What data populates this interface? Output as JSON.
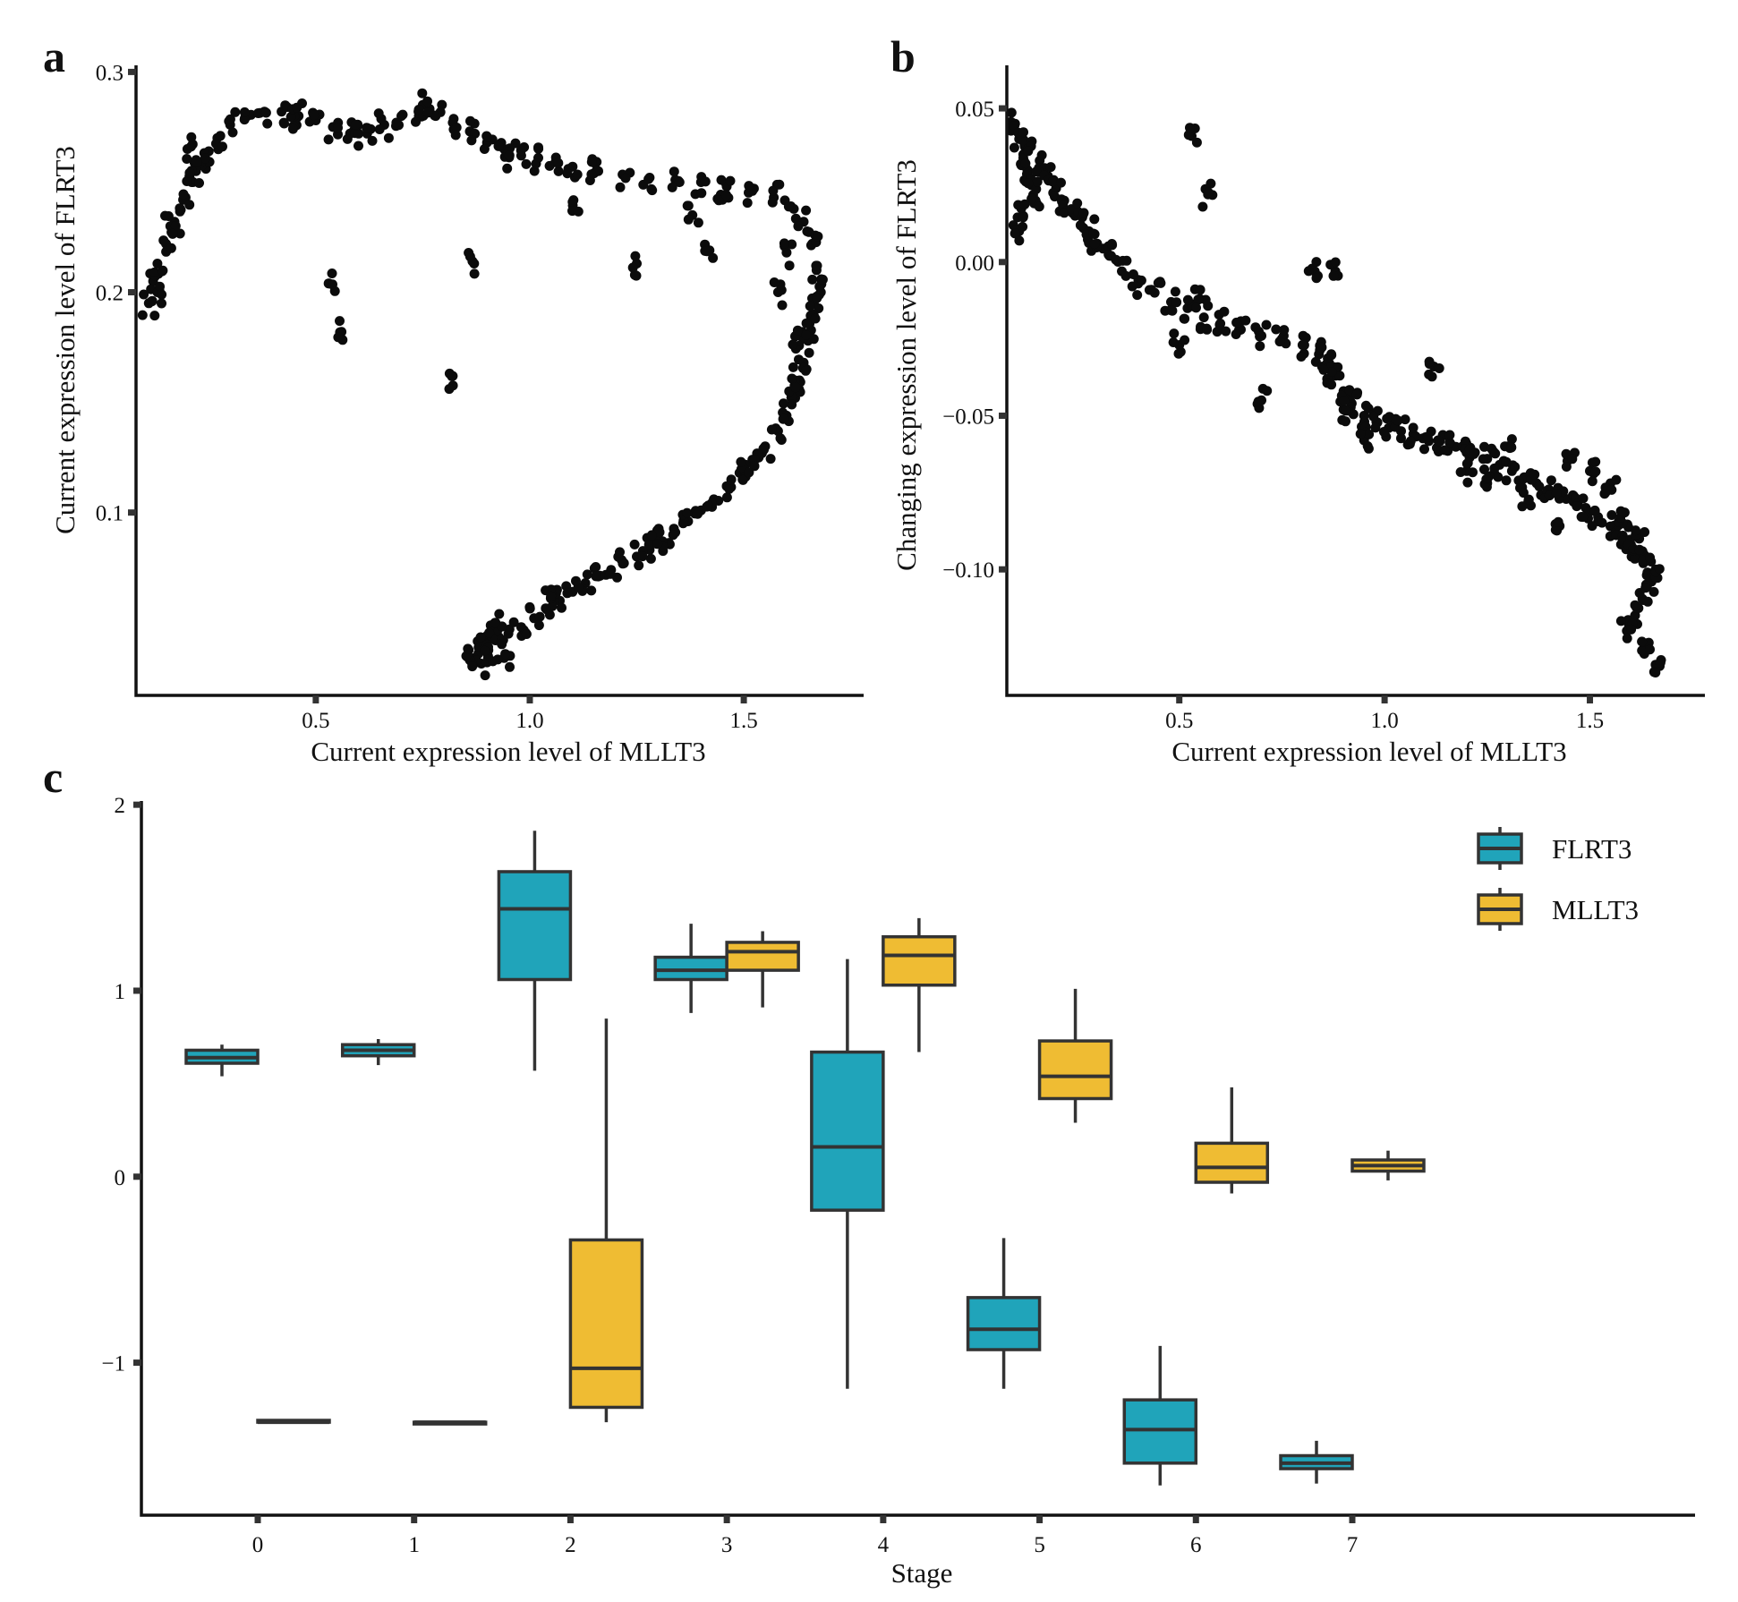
{
  "colors": {
    "FLRT3": "#20A4BA",
    "MLLT3": "#EFBC33",
    "points": "#0b0b0b",
    "axis": "#111111"
  },
  "chart_data": [
    {
      "panel": "a",
      "type": "scatter",
      "title": "",
      "xlabel": "Current expression level of MLLT3",
      "ylabel": "Current expression level of FLRT3",
      "xlim": [
        0.08,
        1.78
      ],
      "ylim": [
        0.017,
        0.303
      ],
      "xticks": [
        0.5,
        1.0,
        1.5
      ],
      "xtick_labels": [
        "0.5",
        "1.0",
        "1.5"
      ],
      "yticks": [
        0.1,
        0.2,
        0.3
      ],
      "ytick_labels": [
        "0.1",
        "0.2",
        "0.3"
      ],
      "grid": false,
      "curve_description": "dense arc of cells from (0.11, 0.19) up to the top near 0.28, across to (1.65, 0.23) and down to (0.88, 0.03)",
      "x": [
        0.11,
        0.12,
        0.13,
        0.15,
        0.17,
        0.19,
        0.21,
        0.23,
        0.25,
        0.27,
        0.3,
        0.34,
        0.38,
        0.42,
        0.46,
        0.5,
        0.54,
        0.58,
        0.62,
        0.66,
        0.7,
        0.74,
        0.78,
        0.82,
        0.86,
        0.9,
        0.94,
        0.98,
        1.02,
        1.06,
        1.1,
        1.16,
        1.22,
        1.28,
        1.34,
        1.4,
        1.46,
        1.52,
        1.57,
        1.61,
        1.64,
        1.66,
        1.67,
        1.67,
        1.66,
        1.65,
        1.64,
        1.63,
        1.62,
        1.6,
        1.58,
        1.55,
        1.52,
        1.49,
        1.46,
        1.43,
        1.4,
        1.37,
        1.34,
        1.31,
        1.28,
        1.25,
        1.22,
        1.19,
        1.16,
        1.13,
        1.1,
        1.07,
        1.04,
        1.01,
        0.98,
        0.95,
        0.92,
        0.89,
        0.88,
        0.87,
        0.86,
        0.9,
        0.94,
        0.53,
        0.56,
        0.87,
        0.82,
        1.25,
        1.1,
        1.38,
        1.42,
        1.62,
        1.58,
        1.66,
        0.13,
        0.16,
        0.22,
        0.2,
        0.45,
        0.6,
        0.75,
        0.95,
        1.15,
        1.45,
        1.6,
        1.68,
        1.62,
        1.5,
        1.3,
        1.05,
        0.92,
        0.9
      ],
      "y": [
        0.195,
        0.205,
        0.213,
        0.222,
        0.232,
        0.242,
        0.25,
        0.258,
        0.264,
        0.27,
        0.276,
        0.28,
        0.282,
        0.282,
        0.28,
        0.278,
        0.275,
        0.272,
        0.272,
        0.276,
        0.28,
        0.282,
        0.28,
        0.277,
        0.273,
        0.268,
        0.265,
        0.262,
        0.261,
        0.259,
        0.257,
        0.255,
        0.253,
        0.252,
        0.251,
        0.25,
        0.248,
        0.246,
        0.243,
        0.239,
        0.232,
        0.222,
        0.21,
        0.198,
        0.188,
        0.178,
        0.168,
        0.16,
        0.152,
        0.144,
        0.137,
        0.13,
        0.124,
        0.118,
        0.112,
        0.106,
        0.101,
        0.096,
        0.091,
        0.087,
        0.083,
        0.08,
        0.077,
        0.074,
        0.071,
        0.068,
        0.064,
        0.06,
        0.056,
        0.052,
        0.048,
        0.045,
        0.042,
        0.039,
        0.036,
        0.034,
        0.033,
        0.032,
        0.034,
        0.204,
        0.182,
        0.213,
        0.162,
        0.213,
        0.241,
        0.235,
        0.219,
        0.18,
        0.2,
        0.19,
        0.2,
        0.23,
        0.255,
        0.265,
        0.28,
        0.272,
        0.285,
        0.262,
        0.254,
        0.242,
        0.218,
        0.2,
        0.16,
        0.12,
        0.09,
        0.065,
        0.05,
        0.04
      ]
    },
    {
      "panel": "b",
      "type": "scatter",
      "title": "",
      "xlabel": "Current expression level of MLLT3",
      "ylabel": "Changing expression level of FLRT3",
      "xlim": [
        0.08,
        1.78
      ],
      "ylim": [
        -0.141,
        0.064
      ],
      "xticks": [
        0.5,
        1.0,
        1.5
      ],
      "xtick_labels": [
        "0.5",
        "1.0",
        "1.5"
      ],
      "yticks": [
        0.05,
        0.0,
        -0.05,
        -0.1
      ],
      "ytick_labels": [
        "0.05",
        "0.00",
        "−0.05",
        "−0.10"
      ],
      "grid": false,
      "x": [
        0.1,
        0.11,
        0.12,
        0.13,
        0.14,
        0.15,
        0.12,
        0.11,
        0.13,
        0.16,
        0.18,
        0.2,
        0.22,
        0.24,
        0.26,
        0.28,
        0.3,
        0.33,
        0.36,
        0.4,
        0.44,
        0.48,
        0.52,
        0.56,
        0.6,
        0.65,
        0.7,
        0.75,
        0.8,
        0.84,
        0.86,
        0.88,
        0.9,
        0.92,
        0.95,
        0.98,
        1.01,
        1.04,
        1.07,
        1.1,
        1.13,
        1.16,
        1.19,
        1.22,
        1.25,
        1.28,
        1.31,
        1.34,
        1.37,
        1.4,
        1.43,
        1.46,
        1.49,
        1.52,
        1.55,
        1.58,
        1.6,
        1.62,
        1.63,
        1.64,
        1.65,
        1.66,
        1.63,
        1.61,
        1.59,
        0.53,
        0.57,
        0.5,
        0.55,
        0.7,
        0.83,
        0.88,
        1.12,
        1.3,
        1.45,
        1.5,
        1.55,
        1.58,
        1.62,
        1.64,
        1.66,
        1.42,
        1.35,
        1.25,
        1.2,
        0.95,
        0.9,
        0.86
      ],
      "y": [
        0.045,
        0.04,
        0.035,
        0.03,
        0.025,
        0.02,
        0.015,
        0.01,
        0.038,
        0.033,
        0.028,
        0.024,
        0.02,
        0.016,
        0.012,
        0.01,
        0.006,
        0.002,
        -0.003,
        -0.007,
        -0.01,
        -0.013,
        -0.015,
        -0.018,
        -0.02,
        -0.022,
        -0.024,
        -0.025,
        -0.027,
        -0.03,
        -0.033,
        -0.037,
        -0.042,
        -0.046,
        -0.05,
        -0.052,
        -0.054,
        -0.055,
        -0.056,
        -0.057,
        -0.058,
        -0.059,
        -0.06,
        -0.062,
        -0.064,
        -0.066,
        -0.068,
        -0.07,
        -0.072,
        -0.074,
        -0.076,
        -0.078,
        -0.08,
        -0.083,
        -0.086,
        -0.089,
        -0.092,
        -0.095,
        -0.098,
        -0.101,
        -0.104,
        -0.1,
        -0.11,
        -0.115,
        -0.12,
        0.041,
        0.022,
        -0.027,
        -0.012,
        -0.045,
        -0.003,
        -0.003,
        -0.034,
        -0.06,
        -0.063,
        -0.068,
        -0.072,
        -0.085,
        -0.09,
        -0.124,
        -0.131,
        -0.085,
        -0.078,
        -0.072,
        -0.068,
        -0.058,
        -0.048,
        -0.038
      ]
    },
    {
      "panel": "c",
      "type": "box",
      "title": "",
      "xlabel": "Stage",
      "ylabel": "",
      "categories": [
        "0",
        "1",
        "2",
        "3",
        "4",
        "5",
        "6",
        "7"
      ],
      "ylim": [
        -1.82,
        2.02
      ],
      "yticks": [
        2,
        1,
        0,
        -1
      ],
      "ytick_labels": [
        "2",
        "1",
        "0",
        "−1"
      ],
      "grid": false,
      "legend_position": "top-right",
      "series": [
        {
          "name": "FLRT3",
          "boxes": [
            {
              "min": 0.54,
              "q1": 0.61,
              "median": 0.64,
              "q3": 0.68,
              "max": 0.71
            },
            {
              "min": 0.6,
              "q1": 0.65,
              "median": 0.68,
              "q3": 0.71,
              "max": 0.74
            },
            {
              "min": 0.57,
              "q1": 1.06,
              "median": 1.44,
              "q3": 1.64,
              "max": 1.86
            },
            {
              "min": 0.88,
              "q1": 1.06,
              "median": 1.11,
              "q3": 1.18,
              "max": 1.36
            },
            {
              "min": -1.14,
              "q1": -0.18,
              "median": 0.16,
              "q3": 0.67,
              "max": 1.17
            },
            {
              "min": -1.14,
              "q1": -0.93,
              "median": -0.82,
              "q3": -0.65,
              "max": -0.33
            },
            {
              "min": -1.66,
              "q1": -1.54,
              "median": -1.36,
              "q3": -1.2,
              "max": -0.91
            },
            {
              "min": -1.65,
              "q1": -1.57,
              "median": -1.54,
              "q3": -1.5,
              "max": -1.42
            }
          ]
        },
        {
          "name": "MLLT3",
          "boxes": [
            {
              "min": -1.32,
              "q1": -1.32,
              "median": -1.32,
              "q3": -1.31,
              "max": -1.31
            },
            {
              "min": -1.32,
              "q1": -1.32,
              "median": -1.32,
              "q3": -1.32,
              "max": -1.32
            },
            {
              "min": -1.32,
              "q1": -1.24,
              "median": -1.03,
              "q3": -0.34,
              "max": 0.85
            },
            {
              "min": 0.91,
              "q1": 1.11,
              "median": 1.21,
              "q3": 1.26,
              "max": 1.32
            },
            {
              "min": 0.67,
              "q1": 1.03,
              "median": 1.19,
              "q3": 1.29,
              "max": 1.39
            },
            {
              "min": 0.29,
              "q1": 0.42,
              "median": 0.54,
              "q3": 0.73,
              "max": 1.01
            },
            {
              "min": -0.09,
              "q1": -0.03,
              "median": 0.05,
              "q3": 0.18,
              "max": 0.48
            },
            {
              "min": -0.02,
              "q1": 0.03,
              "median": 0.06,
              "q3": 0.09,
              "max": 0.14
            }
          ]
        }
      ]
    }
  ]
}
